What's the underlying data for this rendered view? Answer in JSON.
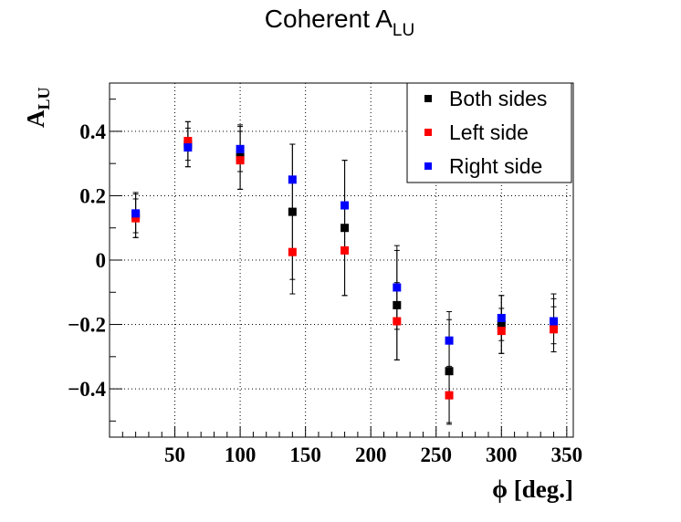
{
  "chart_data": {
    "type": "scatter",
    "title_main": "Coherent A",
    "title_sub": "LU",
    "xlabel": "ϕ [deg.]",
    "ylabel_main": "A",
    "ylabel_sub": "LU",
    "xlim": [
      0,
      355
    ],
    "ylim": [
      -0.55,
      0.55
    ],
    "xticks": [
      50,
      100,
      150,
      200,
      250,
      300,
      350
    ],
    "yticks": [
      0.4,
      0.2,
      0,
      -0.2,
      -0.4
    ],
    "ytick_labels": [
      "0.4",
      "0.2",
      "0",
      "−0.2",
      "−0.4"
    ],
    "grid": true,
    "legend_position": "top-right",
    "x": [
      20,
      60,
      100,
      140,
      180,
      220,
      260,
      300,
      340
    ],
    "series": [
      {
        "name": "Both sides",
        "color": "#000000",
        "values": [
          0.14,
          0.36,
          0.32,
          0.15,
          0.1,
          -0.14,
          -0.345,
          -0.2,
          -0.195
        ],
        "errors": [
          0.07,
          0.07,
          0.1,
          0.21,
          0.21,
          0.17,
          0.16,
          0.09,
          0.09
        ]
      },
      {
        "name": "Left side",
        "color": "#ff0000",
        "values": [
          0.13,
          0.37,
          0.31,
          0.025,
          0.03,
          -0.19,
          -0.42,
          -0.22,
          -0.215
        ],
        "errors": [
          0.06,
          0.06,
          0.09,
          0.13,
          0.14,
          0.12,
          0.09,
          0.07,
          0.07
        ]
      },
      {
        "name": "Right side",
        "color": "#0000ff",
        "values": [
          0.145,
          0.35,
          0.345,
          0.25,
          0.17,
          -0.085,
          -0.25,
          -0.18,
          -0.19
        ],
        "errors": [
          0.06,
          0.06,
          0.07,
          0.11,
          0.14,
          0.13,
          0.09,
          0.07,
          0.07
        ]
      }
    ]
  }
}
